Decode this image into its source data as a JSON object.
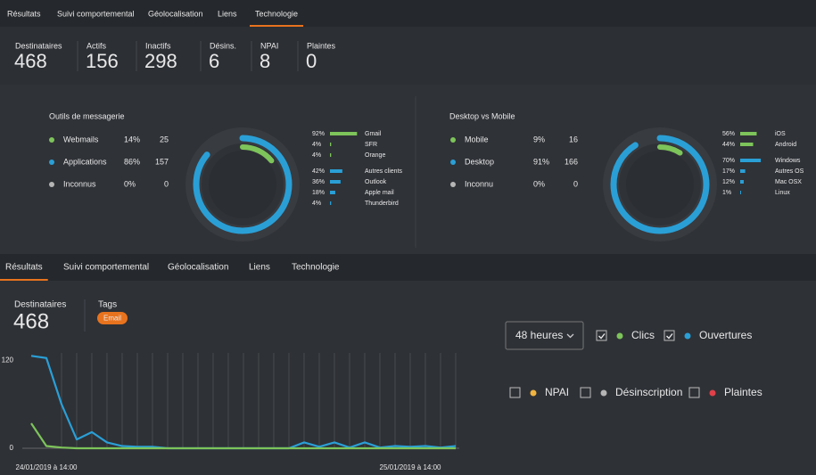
{
  "tabs_top": {
    "items": [
      "Résultats",
      "Suivi comportemental",
      "Géolocalisation",
      "Liens",
      "Technologie"
    ],
    "active": 4
  },
  "stats": [
    {
      "label": "Destinataires",
      "value": 468
    },
    {
      "label": "Actifs",
      "value": 156
    },
    {
      "label": "Inactifs",
      "value": 298
    },
    {
      "label": "Désins.",
      "value": 6
    },
    {
      "label": "NPAI",
      "value": 8
    },
    {
      "label": "Plaintes",
      "value": 0
    }
  ],
  "panels": [
    {
      "title": "Outils de messagerie",
      "rows": [
        {
          "name": "Webmails",
          "pct": 14,
          "pct_label": "14%",
          "count": 25,
          "color": "#7dc45a"
        },
        {
          "name": "Applications",
          "pct": 86,
          "pct_label": "86%",
          "count": 157,
          "color": "#2a9fd6"
        },
        {
          "name": "Inconnus",
          "pct": 0,
          "pct_label": "0%",
          "count": 0,
          "color": "#b5b5b5"
        }
      ],
      "groups": [
        {
          "color": "#7dc45a",
          "items": [
            {
              "name": "Gmail",
              "pct": 92,
              "pct_label": "92%"
            },
            {
              "name": "SFR",
              "pct": 4,
              "pct_label": "4%"
            },
            {
              "name": "Orange",
              "pct": 4,
              "pct_label": "4%"
            }
          ]
        },
        {
          "color": "#2a9fd6",
          "items": [
            {
              "name": "Autres clients",
              "pct": 42,
              "pct_label": "42%"
            },
            {
              "name": "Outlook",
              "pct": 36,
              "pct_label": "36%"
            },
            {
              "name": "Apple mail",
              "pct": 18,
              "pct_label": "18%"
            },
            {
              "name": "Thunderbird",
              "pct": 4,
              "pct_label": "4%"
            }
          ]
        }
      ]
    },
    {
      "title": "Desktop vs Mobile",
      "rows": [
        {
          "name": "Mobile",
          "pct": 9,
          "pct_label": "9%",
          "count": 16,
          "color": "#7dc45a"
        },
        {
          "name": "Desktop",
          "pct": 91,
          "pct_label": "91%",
          "count": 166,
          "color": "#2a9fd6"
        },
        {
          "name": "Inconnu",
          "pct": 0,
          "pct_label": "0%",
          "count": 0,
          "color": "#b5b5b5"
        }
      ],
      "groups": [
        {
          "color": "#7dc45a",
          "items": [
            {
              "name": "iOS",
              "pct": 56,
              "pct_label": "56%"
            },
            {
              "name": "Android",
              "pct": 44,
              "pct_label": "44%"
            }
          ]
        },
        {
          "color": "#2a9fd6",
          "items": [
            {
              "name": "Windows",
              "pct": 70,
              "pct_label": "70%"
            },
            {
              "name": "Autres OS",
              "pct": 17,
              "pct_label": "17%"
            },
            {
              "name": "Mac OSX",
              "pct": 12,
              "pct_label": "12%"
            },
            {
              "name": "Linux",
              "pct": 1,
              "pct_label": "1%"
            }
          ]
        }
      ]
    }
  ],
  "tabs_bottom": {
    "items": [
      "Résultats",
      "Suivi comportemental",
      "Géolocalisation",
      "Liens",
      "Technologie"
    ],
    "active": 0
  },
  "summary": {
    "label": "Destinataires",
    "value": 468,
    "tags_label": "Tags",
    "tag": "Email"
  },
  "controls": {
    "period": "48 heures",
    "extra": [
      {
        "name": "NPAI",
        "color": "#f0b340",
        "checked": false
      },
      {
        "name": "Désinscription",
        "color": "#b5b5b5",
        "checked": false
      },
      {
        "name": "Plaintes",
        "color": "#e0404a",
        "checked": false
      }
    ]
  },
  "chart_data": {
    "type": "line",
    "categories": [
      null,
      "24/01/2019 à 14:00",
      null,
      null,
      null,
      null,
      null,
      null,
      null,
      null,
      null,
      null,
      null,
      null,
      null,
      null,
      null,
      null,
      null,
      null,
      null,
      null,
      null,
      null,
      null,
      "25/01/2019 à 14:00",
      null,
      null,
      null
    ],
    "series": [
      {
        "name": "Clics",
        "color": "#7dc45a",
        "checked": true,
        "values": [
          34,
          3,
          1,
          0,
          0,
          0,
          0,
          0,
          0,
          0,
          0,
          0,
          0,
          0,
          0,
          0,
          0,
          0,
          0,
          0,
          0,
          0,
          0,
          0,
          0,
          0,
          0,
          0,
          0
        ]
      },
      {
        "name": "Ouvertures",
        "color": "#2a9fd6",
        "checked": true,
        "values": [
          126,
          123,
          60,
          12,
          22,
          8,
          3,
          2,
          2,
          0,
          0,
          0,
          0,
          0,
          0,
          0,
          0,
          0,
          8,
          2,
          8,
          1,
          8,
          1,
          3,
          2,
          3,
          1,
          3
        ]
      }
    ],
    "ylim": [
      0,
      130
    ],
    "yticks": [
      0,
      120
    ],
    "grid": "x"
  }
}
